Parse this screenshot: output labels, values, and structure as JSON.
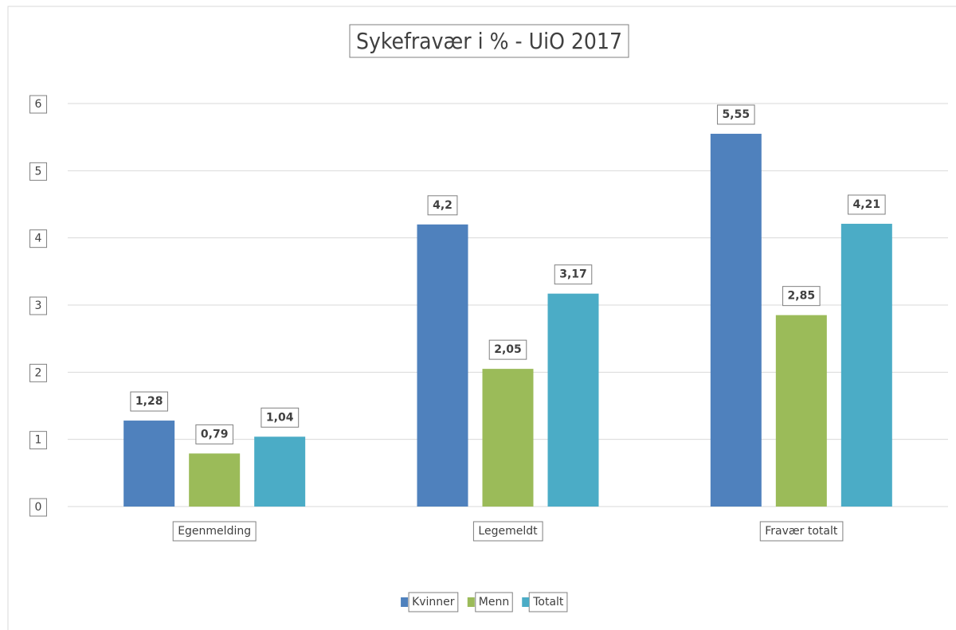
{
  "chart_data": {
    "type": "bar",
    "title": "Sykefravær i % - UiO 2017",
    "categories": [
      "Egenmelding",
      "Legemeldt",
      "Fravær totalt"
    ],
    "series": [
      {
        "name": "Kvinner",
        "color": "#4f81bd",
        "values": [
          1.28,
          4.2,
          5.55
        ],
        "value_labels": [
          "1,28",
          "4,2",
          "5,55"
        ]
      },
      {
        "name": "Menn",
        "color": "#9bbb59",
        "values": [
          0.79,
          2.05,
          2.85
        ],
        "value_labels": [
          "0,79",
          "2,05",
          "2,85"
        ]
      },
      {
        "name": "Totalt",
        "color": "#4bacc6",
        "values": [
          1.04,
          3.17,
          4.21
        ],
        "value_labels": [
          "1,04",
          "3,17",
          "4,21"
        ]
      }
    ],
    "ylim": [
      0,
      6
    ],
    "yticks": [
      0,
      1,
      2,
      3,
      4,
      5,
      6
    ],
    "grid": true,
    "legend": "bottom"
  }
}
